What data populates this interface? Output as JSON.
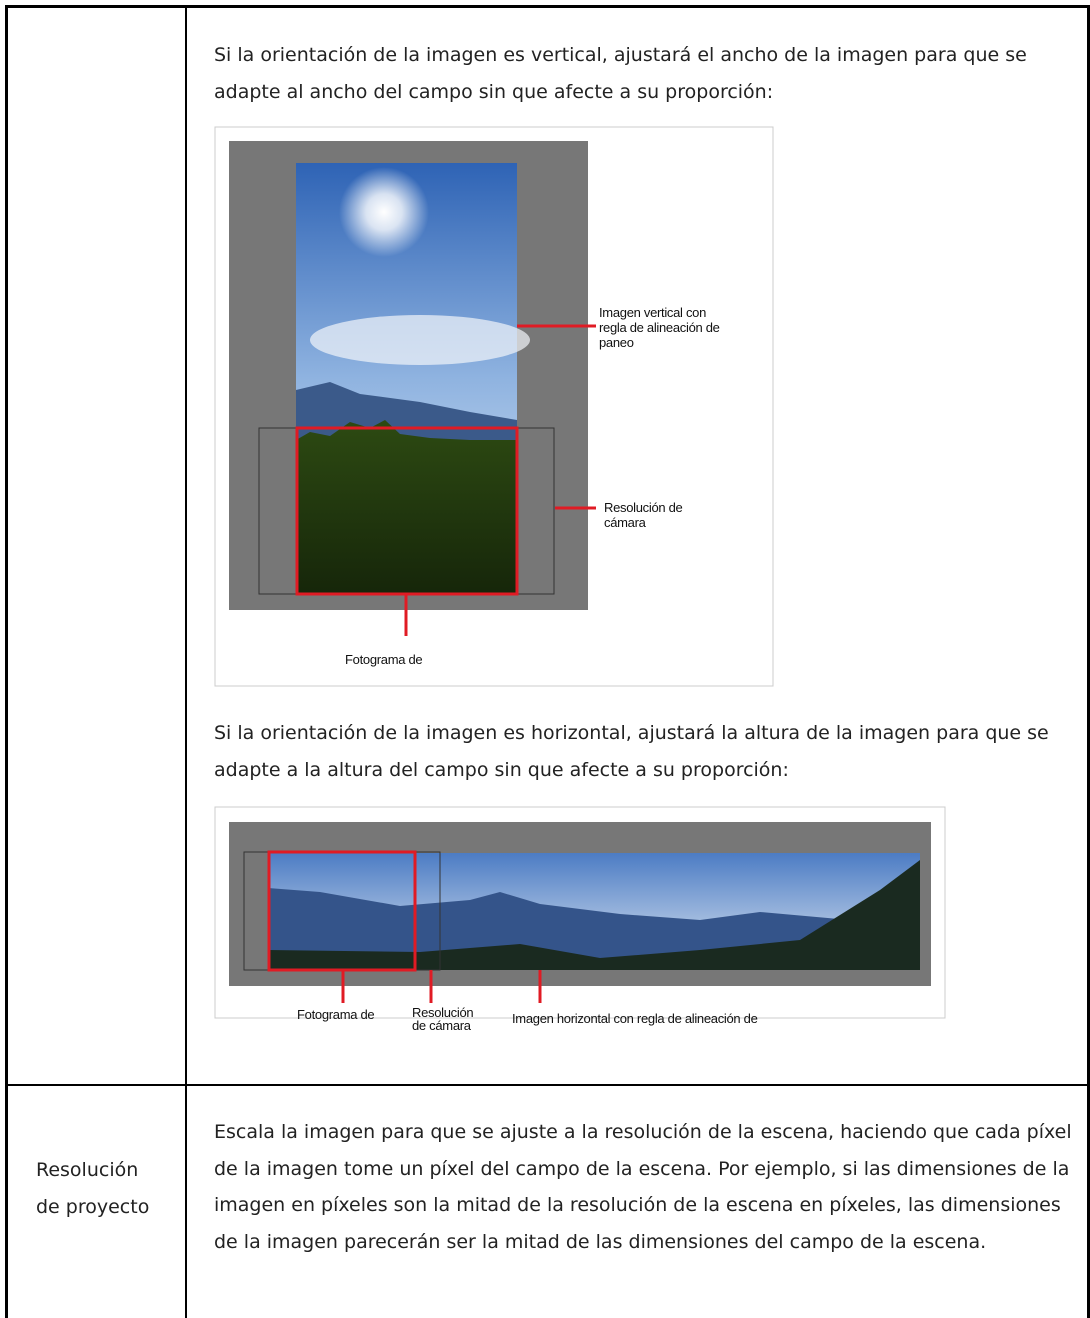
{
  "table": {
    "rows": [
      {
        "description": {
          "paragraph_1": "Si la orientación de la imagen es vertical, ajustará el ancho de la imagen para que se adapte al ancho del campo sin que afecte a su proporción:",
          "figure_1": {
            "labels": {
              "pan_image": [
                "Imagen vertical con",
                "regla de alineación de",
                "paneo"
              ],
              "camera": [
                "Resolución de",
                "cámara"
              ],
              "frame": [
                "Fotograma de"
              ]
            }
          },
          "paragraph_2": "Si la orientación de la imagen es horizontal, ajustará la altura de la imagen para que se adapte a la altura del campo sin que afecte a su proporción:",
          "figure_2": {
            "labels": {
              "frame": [
                "Fotograma de"
              ],
              "camera": [
                "Resolución",
                "de cámara"
              ],
              "pan_image": [
                "Imagen horizontal con regla de alineación de"
              ]
            }
          }
        }
      },
      {
        "option": "Resolución de proyecto",
        "description": "Escala la imagen para que se ajuste a la resolución de la escena, haciendo que cada píxel de la imagen tome un píxel del campo de la escena. Por ejemplo, si las dimensiones de la imagen en píxeles son la mitad de la resolución de la escena en píxeles, las dimensiones de la imagen parecerán ser la mitad de las dimensiones del campo de la escena."
      }
    ]
  }
}
